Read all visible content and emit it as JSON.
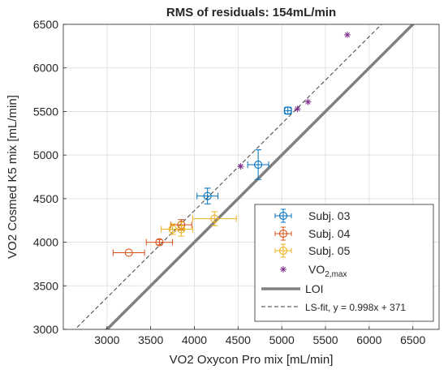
{
  "chart_data": {
    "type": "scatter",
    "title": "RMS of residuals: 154mL/min",
    "xlabel": "VO2 Oxycon Pro mix [mL/min]",
    "ylabel": "VO2 Cosmed K5 mix [mL/min]",
    "xlim": [
      2500,
      6800
    ],
    "ylim": [
      3000,
      6500
    ],
    "xticks": [
      3000,
      3500,
      4000,
      4500,
      5000,
      5500,
      6000,
      6500
    ],
    "yticks": [
      3000,
      3500,
      4000,
      4500,
      5000,
      5500,
      6000,
      6500
    ],
    "grid": true,
    "legend_position": "bottom-right",
    "series": [
      {
        "name": "Subj. 03",
        "color": "#0072BD",
        "marker": "circle",
        "points": [
          {
            "x": 4150,
            "y": 4530,
            "xerr": 120,
            "yerr": 90
          },
          {
            "x": 4730,
            "y": 4890,
            "xerr": 120,
            "yerr": 170
          },
          {
            "x": 5070,
            "y": 5510,
            "xerr": 40,
            "yerr": 40
          }
        ]
      },
      {
        "name": "Subj. 04",
        "color": "#D95319",
        "marker": "circle",
        "points": [
          {
            "x": 3250,
            "y": 3880,
            "xerr": 180,
            "yerr": 0
          },
          {
            "x": 3600,
            "y": 4000,
            "xerr": 150,
            "yerr": 30
          },
          {
            "x": 3850,
            "y": 4200,
            "xerr": 120,
            "yerr": 60
          }
        ]
      },
      {
        "name": "Subj. 05",
        "color": "#EDB120",
        "marker": "circle",
        "points": [
          {
            "x": 3750,
            "y": 4150,
            "xerr": 130,
            "yerr": 60
          },
          {
            "x": 3850,
            "y": 4150,
            "xerr": 130,
            "yerr": 80
          },
          {
            "x": 4230,
            "y": 4270,
            "xerr": 250,
            "yerr": 80
          }
        ]
      },
      {
        "name": "VO",
        "name_subscript": "2,max",
        "color": "#7E2F8E",
        "marker": "asterisk",
        "points": [
          {
            "x": 4530,
            "y": 4870
          },
          {
            "x": 5180,
            "y": 5530
          },
          {
            "x": 5300,
            "y": 5610
          },
          {
            "x": 5750,
            "y": 6380
          }
        ]
      }
    ],
    "lines": [
      {
        "name": "LOI",
        "slope": 1.0,
        "intercept": 0,
        "color": "#808080",
        "style": "solid"
      },
      {
        "name": "LS-fit, y = 0.998x + 371",
        "slope": 0.998,
        "intercept": 371,
        "color": "#404040",
        "style": "dashed"
      }
    ]
  }
}
